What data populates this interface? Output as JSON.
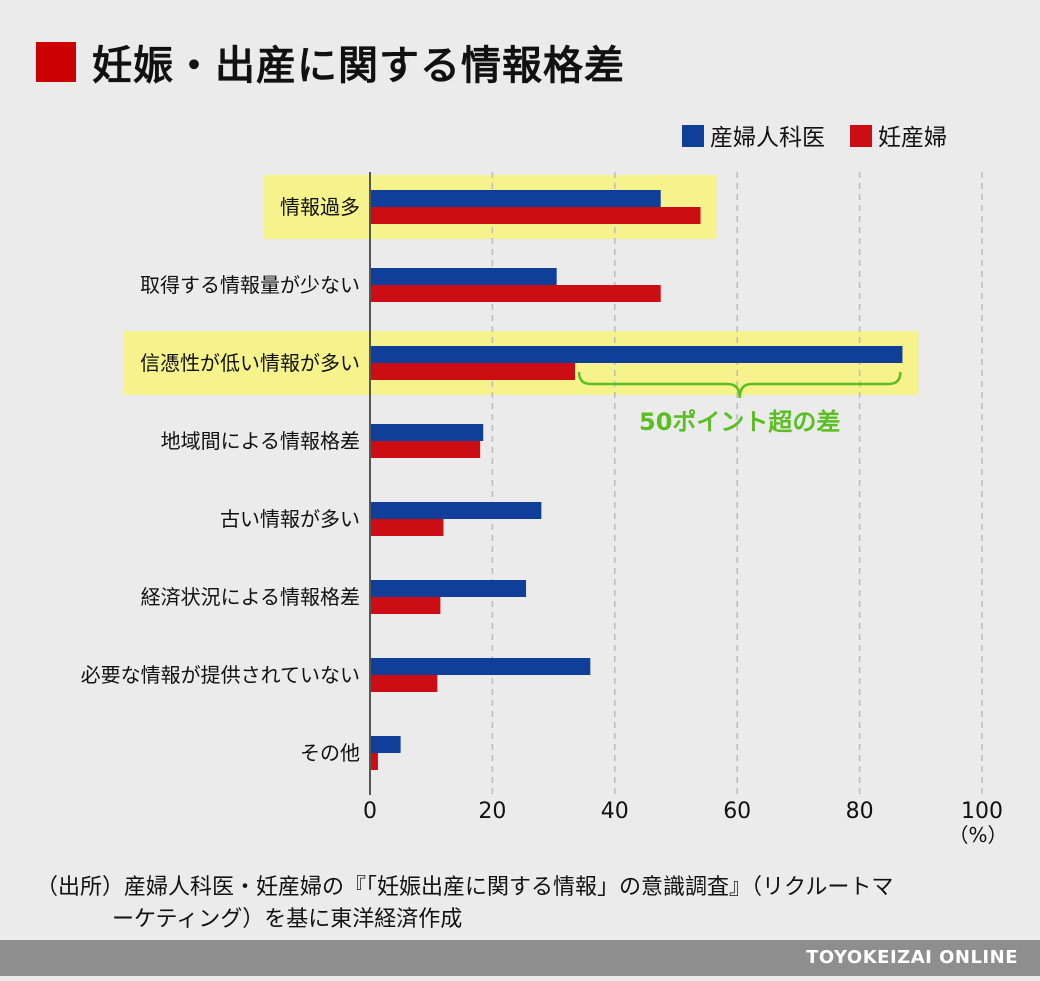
{
  "title": "妊娠・出産に関する情報格差",
  "colors": {
    "title_square": "#cc0000",
    "series_1": "#0f3f99",
    "series_2": "#cc0d14",
    "highlight": "#f6f28c",
    "annotation": "#5bbf21",
    "grid": "#bbbbbb",
    "axis": "#555555",
    "footer": "#8e8e8e"
  },
  "chart_data": {
    "type": "bar",
    "orientation": "horizontal",
    "categories": [
      "情報過多",
      "取得する情報量が少ない",
      "信憑性が低い情報が多い",
      "地域間による情報格差",
      "古い情報が多い",
      "経済状況による情報格差",
      "必要な情報が提供されていない",
      "その他"
    ],
    "series": [
      {
        "name": "産婦人科医",
        "values": [
          47.5,
          30.5,
          87,
          18.5,
          28,
          25.5,
          36,
          5
        ]
      },
      {
        "name": "妊産婦",
        "values": [
          54,
          47.5,
          33.5,
          18,
          12,
          11.5,
          11,
          1.3
        ]
      }
    ],
    "highlighted_categories": [
      "情報過多",
      "信憑性が低い情報が多い"
    ],
    "annotation": "50ポイント超の差",
    "xlim": [
      0,
      100
    ],
    "xticks": [
      "0",
      "20",
      "40",
      "60",
      "80",
      "100"
    ],
    "unit_label": "（%）",
    "grid": true,
    "legend_position": "top-right"
  },
  "source": {
    "line1": "（出所）産婦人科医・妊産婦の『「妊娠出産に関する情報」の意識調査』（リクルートマ",
    "line2": "ーケティング）を基に東洋経済作成"
  },
  "footer": "TOYOKEIZAI ONLINE"
}
